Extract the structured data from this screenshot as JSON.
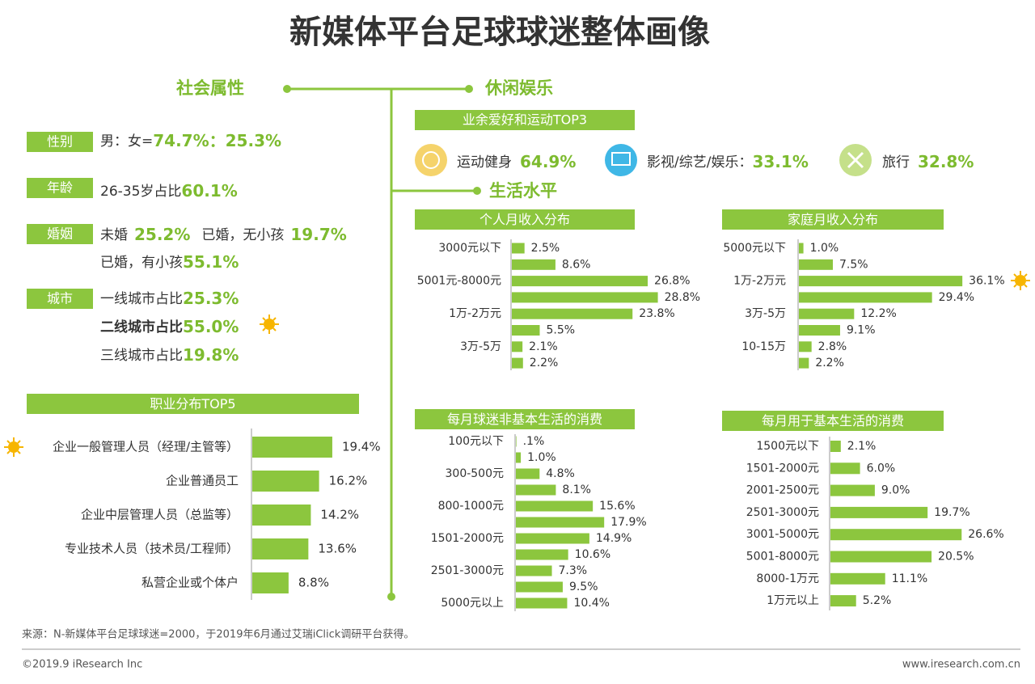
{
  "title": "新媒体平台足球球迷整体画像",
  "social": {
    "heading": "社会属性",
    "gender": {
      "label": "性别",
      "text": "男：女=",
      "value": "74.7%：25.3%"
    },
    "age": {
      "label": "年龄",
      "text": "26-35岁占比",
      "value": "60.1%"
    },
    "marriage": {
      "label": "婚姻",
      "items": [
        {
          "text": "未婚",
          "value": "25.2%"
        },
        {
          "text": "已婚，无小孩",
          "value": "19.7%"
        },
        {
          "text": "已婚，有小孩",
          "value": "55.1%"
        }
      ]
    },
    "city": {
      "label": "城市",
      "items": [
        {
          "text": "一线城市占比",
          "value": "25.3%"
        },
        {
          "text": "二线城市占比",
          "value": "55.0%"
        },
        {
          "text": "三线城市占比",
          "value": "19.8%"
        }
      ]
    }
  },
  "leisure": {
    "heading": "休闲娱乐",
    "subheading": "业余爱好和运动TOP3",
    "items": [
      {
        "text": "运动健身",
        "value": "64.9%"
      },
      {
        "text": "影视/综艺/娱乐：",
        "value": "33.1%"
      },
      {
        "text": "旅行",
        "value": "32.8%"
      }
    ]
  },
  "living": {
    "heading": "生活水平"
  },
  "chart_data": [
    {
      "type": "bar",
      "orientation": "horizontal",
      "title": "职业分布TOP5",
      "color": "#8cc63e",
      "categories": [
        "企业一般管理人员（经理/主管等）",
        "企业普通员工",
        "企业中层管理人员（总监等）",
        "专业技术人员（技术员/工程师）",
        "私营企业或个体户"
      ],
      "values": [
        19.4,
        16.2,
        14.2,
        13.6,
        8.8
      ],
      "value_labels": [
        "19.4%",
        "16.2%",
        "14.2%",
        "13.6%",
        "8.8%"
      ]
    },
    {
      "type": "bar",
      "orientation": "horizontal",
      "title": "个人月收入分布",
      "color": "#8cc63e",
      "categories": [
        "3000元以下",
        null,
        "5001元-8000元",
        null,
        "1万-2万元",
        null,
        "3万-5万",
        null
      ],
      "values": [
        2.5,
        8.6,
        26.8,
        28.8,
        23.8,
        5.5,
        2.1,
        2.2
      ],
      "value_labels": [
        "2.5%",
        "8.6%",
        "26.8%",
        "28.8%",
        "23.8%",
        "5.5%",
        "2.1%",
        "2.2%"
      ]
    },
    {
      "type": "bar",
      "orientation": "horizontal",
      "title": "家庭月收入分布",
      "color": "#8cc63e",
      "categories": [
        "5000元以下",
        null,
        "1万-2万元",
        null,
        "3万-5万",
        null,
        "10-15万",
        null
      ],
      "values": [
        1.0,
        7.5,
        36.1,
        29.4,
        12.2,
        9.1,
        2.8,
        2.2
      ],
      "value_labels": [
        "1.0%",
        "7.5%",
        "36.1%",
        "29.4%",
        "12.2%",
        "9.1%",
        "2.8%",
        "2.2%"
      ]
    },
    {
      "type": "bar",
      "orientation": "horizontal",
      "title": "每月球迷非基本生活的消费",
      "color": "#8cc63e",
      "categories": [
        "100元以下",
        null,
        "300-500元",
        null,
        "800-1000元",
        null,
        "1501-2000元",
        null,
        "2501-3000元",
        null,
        "5000元以上"
      ],
      "values": [
        0.1,
        1.0,
        4.8,
        8.1,
        15.6,
        17.9,
        14.9,
        10.6,
        7.3,
        9.5,
        10.4
      ],
      "value_labels": [
        ".1%",
        "1.0%",
        "4.8%",
        "8.1%",
        "15.6%",
        "17.9%",
        "14.9%",
        "10.6%",
        "7.3%",
        "9.5%",
        "10.4%"
      ]
    },
    {
      "type": "bar",
      "orientation": "horizontal",
      "title": "每月用于基本生活的消费",
      "color": "#8cc63e",
      "categories": [
        "1500元以下",
        "1501-2000元",
        "2001-2500元",
        "2501-3000元",
        "3001-5000元",
        "5001-8000元",
        "8000-1万元",
        "1万元以上"
      ],
      "values": [
        2.1,
        6.0,
        9.0,
        19.7,
        26.6,
        20.5,
        11.1,
        5.2
      ],
      "value_labels": [
        "2.1%",
        "6.0%",
        "9.0%",
        "19.7%",
        "26.6%",
        "20.5%",
        "11.1%",
        "5.2%"
      ]
    }
  ],
  "footer": {
    "source": "来源：N-新媒体平台足球球迷=2000，于2019年6月通过艾瑞iClick调研平台获得。",
    "copyright": "©2019.9 iResearch Inc",
    "website": "www.iresearch.com.cn"
  }
}
